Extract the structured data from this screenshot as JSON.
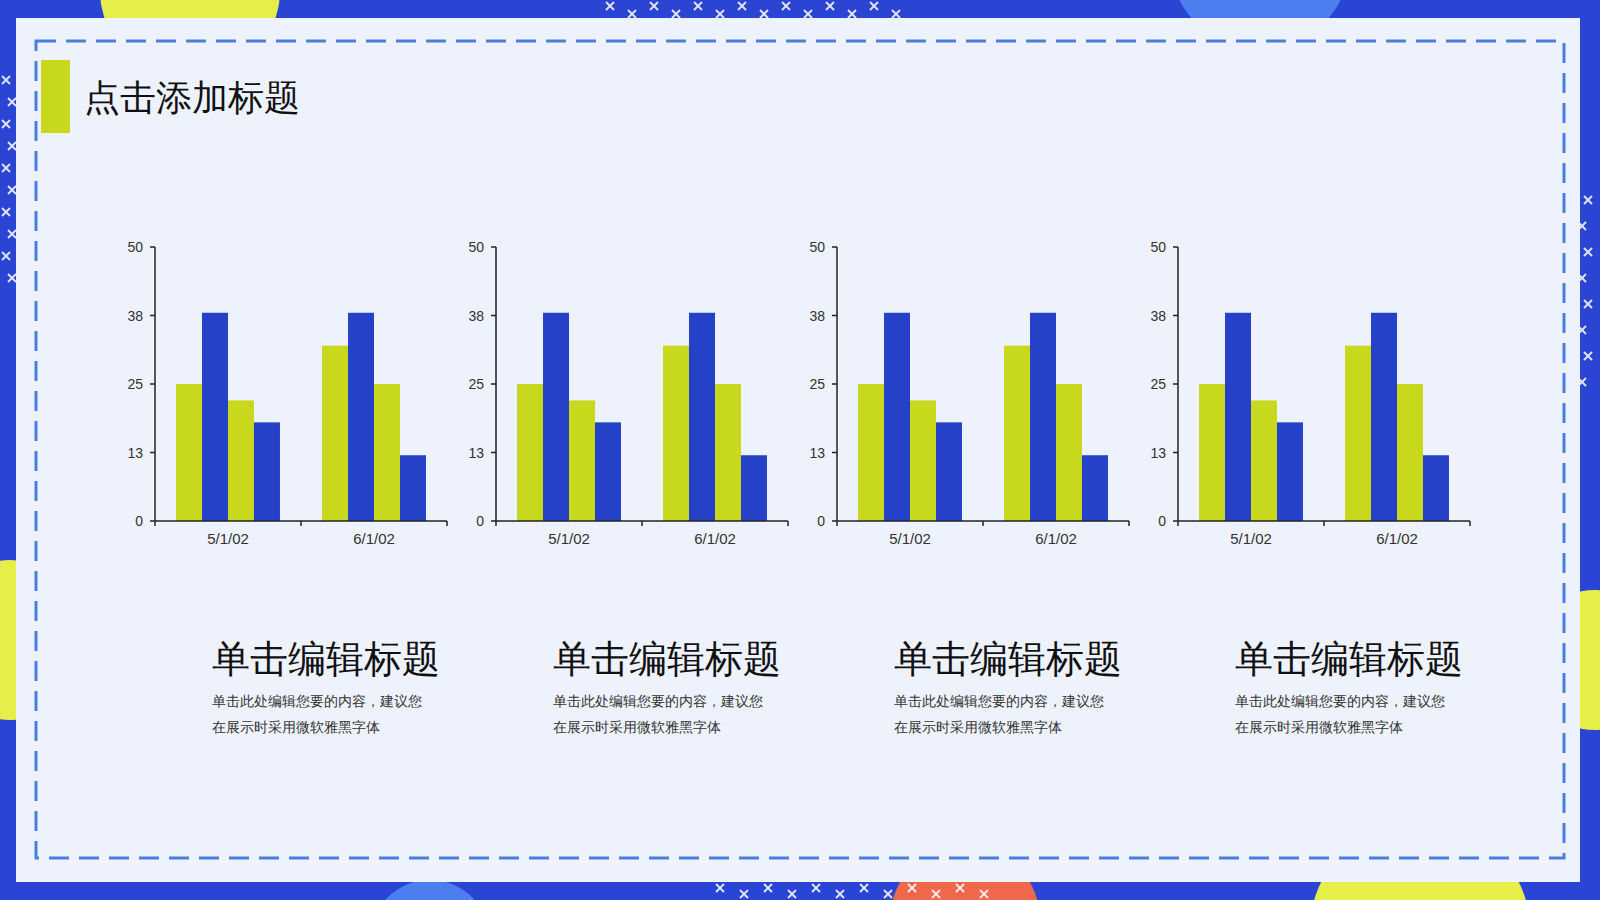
{
  "title": "点击添加标题",
  "chart_data": [
    {
      "type": "bar",
      "categories": [
        "5/1/02",
        "6/1/02"
      ],
      "series": [
        {
          "color": "#c8d81c",
          "values": [
            25,
            32
          ]
        },
        {
          "color": "#2541c8",
          "values": [
            38,
            38
          ]
        },
        {
          "color": "#c8d81c",
          "values": [
            22,
            25
          ]
        },
        {
          "color": "#2541c8",
          "values": [
            18,
            12
          ]
        }
      ],
      "ylim": [
        0,
        50
      ],
      "yticks": [
        0,
        {
          "value": 12.5,
          "label": "13"
        },
        25,
        {
          "value": 37.5,
          "label": "38"
        },
        50
      ],
      "grid": false
    },
    {
      "type": "bar",
      "categories": [
        "5/1/02",
        "6/1/02"
      ],
      "series": [
        {
          "color": "#c8d81c",
          "values": [
            25,
            32
          ]
        },
        {
          "color": "#2541c8",
          "values": [
            38,
            38
          ]
        },
        {
          "color": "#c8d81c",
          "values": [
            22,
            25
          ]
        },
        {
          "color": "#2541c8",
          "values": [
            18,
            12
          ]
        }
      ],
      "ylim": [
        0,
        50
      ],
      "yticks": [
        0,
        {
          "value": 12.5,
          "label": "13"
        },
        25,
        {
          "value": 37.5,
          "label": "38"
        },
        50
      ],
      "grid": false
    },
    {
      "type": "bar",
      "categories": [
        "5/1/02",
        "6/1/02"
      ],
      "series": [
        {
          "color": "#c8d81c",
          "values": [
            25,
            32
          ]
        },
        {
          "color": "#2541c8",
          "values": [
            38,
            38
          ]
        },
        {
          "color": "#c8d81c",
          "values": [
            22,
            25
          ]
        },
        {
          "color": "#2541c8",
          "values": [
            18,
            12
          ]
        }
      ],
      "ylim": [
        0,
        50
      ],
      "yticks": [
        0,
        {
          "value": 12.5,
          "label": "13"
        },
        25,
        {
          "value": 37.5,
          "label": "38"
        },
        50
      ],
      "grid": false
    },
    {
      "type": "bar",
      "categories": [
        "5/1/02",
        "6/1/02"
      ],
      "series": [
        {
          "color": "#c8d81c",
          "values": [
            25,
            32
          ]
        },
        {
          "color": "#2541c8",
          "values": [
            38,
            38
          ]
        },
        {
          "color": "#c8d81c",
          "values": [
            22,
            25
          ]
        },
        {
          "color": "#2541c8",
          "values": [
            18,
            12
          ]
        }
      ],
      "ylim": [
        0,
        50
      ],
      "yticks": [
        0,
        {
          "value": 12.5,
          "label": "13"
        },
        25,
        {
          "value": 37.5,
          "label": "38"
        },
        50
      ],
      "grid": false
    }
  ],
  "captions": [
    {
      "heading": "单击编辑标题",
      "lines": [
        "单击此处编辑您要的内容，建议您",
        "在展示时采用微软雅黑字体"
      ]
    },
    {
      "heading": "单击编辑标题",
      "lines": [
        "单击此处编辑您要的内容，建议您",
        "在展示时采用微软雅黑字体"
      ]
    },
    {
      "heading": "单击编辑标题",
      "lines": [
        "单击此处编辑您要的内容，建议您",
        "在展示时采用微软雅黑字体"
      ]
    },
    {
      "heading": "单击编辑标题",
      "lines": [
        "单击此处编辑您要的内容，建议您",
        "在展示时采用微软雅黑字体"
      ]
    }
  ]
}
